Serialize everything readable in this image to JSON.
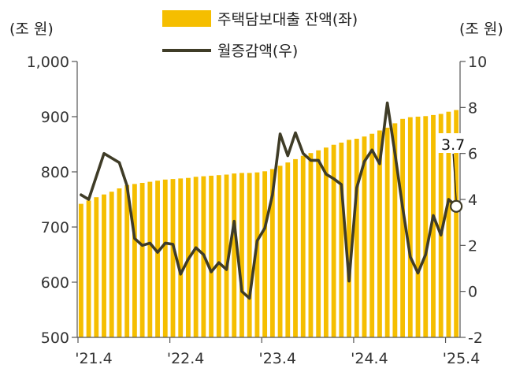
{
  "units": {
    "left": "(조 원)",
    "right": "(조 원)"
  },
  "colors": {
    "bar": "#F5BE00",
    "line": "#3F3C27",
    "axis": "#555555"
  },
  "chart_data": {
    "type": "bar",
    "xlabel": "",
    "x_ticks": [
      "'21.4",
      "'22.4",
      "'23.4",
      "'24.4",
      "'25.4"
    ],
    "ylim_left": [
      500,
      1000
    ],
    "yticks_left": [
      "1,000",
      "900",
      "800",
      "700",
      "600",
      "500"
    ],
    "ylim_right": [
      -2,
      10
    ],
    "yticks_right": [
      "10",
      "8",
      "6",
      "4",
      "2",
      "0",
      "-2"
    ],
    "legend_placement": "top-center",
    "grid": false,
    "series": [
      {
        "name": "주택담보대출 잔액(좌)",
        "type": "bar",
        "axis": "left",
        "values": [
          742,
          748,
          754,
          759,
          764,
          770,
          776,
          778,
          780,
          782,
          784,
          786,
          787,
          788,
          789,
          791,
          792,
          793,
          794,
          795,
          797,
          798,
          798,
          799,
          801,
          805,
          811,
          817,
          823,
          829,
          834,
          839,
          844,
          849,
          853,
          858,
          860,
          864,
          869,
          875,
          880,
          888,
          896,
          899,
          900,
          901,
          903,
          905,
          909,
          912
        ]
      },
      {
        "name": "월증감액(우)",
        "type": "line",
        "axis": "right",
        "values": [
          4.2,
          4.0,
          5.0,
          6.0,
          5.8,
          5.6,
          4.6,
          2.3,
          2.0,
          2.1,
          1.7,
          2.1,
          2.05,
          0.75,
          1.4,
          1.9,
          1.6,
          0.85,
          1.25,
          0.95,
          3.05,
          0.0,
          -0.3,
          2.2,
          2.75,
          4.2,
          6.85,
          5.9,
          6.9,
          6.0,
          5.7,
          5.7,
          5.1,
          4.9,
          4.65,
          0.45,
          4.5,
          5.65,
          6.15,
          5.55,
          8.2,
          6.0,
          3.65,
          1.5,
          0.8,
          1.6,
          3.3,
          2.45,
          4.0,
          3.7
        ]
      }
    ],
    "annotations": [
      {
        "text": "3.7",
        "series": "월증감액(우)",
        "point": "last"
      }
    ]
  }
}
